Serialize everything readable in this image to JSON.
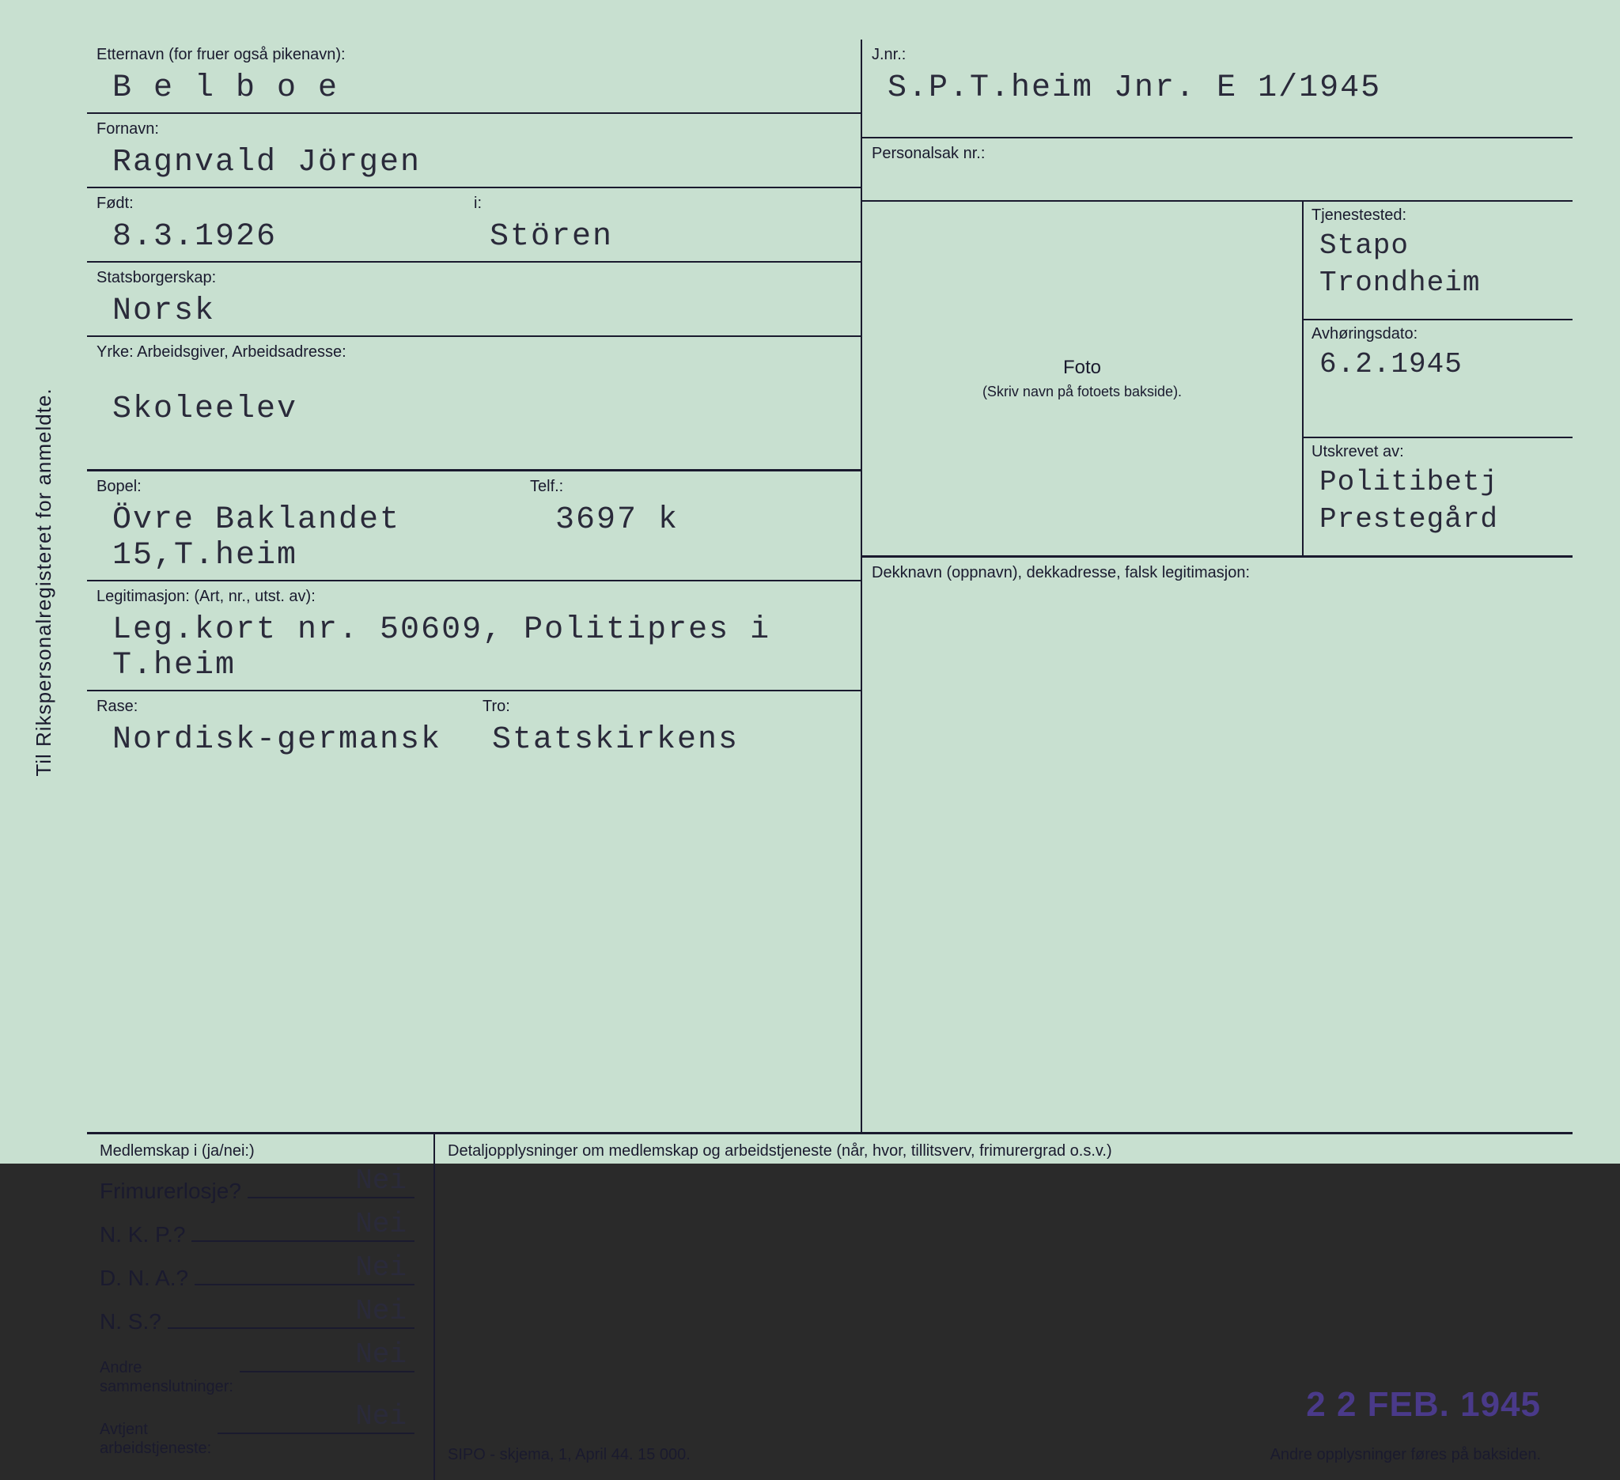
{
  "card": {
    "vertical_title": "Til Rikspersonalregisteret for anmeldte.",
    "background_color": "#c8e0d0",
    "border_color": "#1a1a2e"
  },
  "left": {
    "etternavn_label": "Etternavn (for fruer også pikenavn):",
    "etternavn": "B e l b o e",
    "fornavn_label": "Fornavn:",
    "fornavn": "Ragnvald Jörgen",
    "fodt_label": "Født:",
    "fodt": "8.3.1926",
    "i_label": "i:",
    "sted": "Stören",
    "stats_label": "Statsborgerskap:",
    "stats": "Norsk",
    "yrke_label": "Yrke:    Arbeidsgiver, Arbeidsadresse:",
    "yrke": "Skoleelev",
    "bopel_label": "Bopel:",
    "telf_label": "Telf.:",
    "bopel": "Övre Baklandet 15,T.heim",
    "telf": "3697 k",
    "legit_label": "Legitimasjon: (Art, nr., utst. av):",
    "legit": "Leg.kort nr. 50609, Politipres i T.heim",
    "rase_label": "Rase:",
    "rase": "Nordisk-germansk",
    "tro_label": "Tro:",
    "tro": "Statskirkens"
  },
  "right": {
    "jnr_label": "J.nr.:",
    "jnr": "S.P.T.heim Jnr. E 1/1945",
    "personal_label": "Personalsak nr.:",
    "foto_label": "Foto",
    "foto_sub": "(Skriv navn på fotoets bakside).",
    "tjeneste_label": "Tjenestested:",
    "tjeneste1": "Stapo",
    "tjeneste2": "Trondheim",
    "avhor_label": "Avhøringsdato:",
    "avhor": "6.2.1945",
    "utskrevet_label": "Utskrevet av:",
    "utskrevet1": "Politibetj",
    "utskrevet2": "Prestegård",
    "dekk_label": "Dekknavn (oppnavn), dekkadresse, falsk legitimasjon:"
  },
  "membership": {
    "header": "Medlemskap i (ja/nei:)",
    "rows": [
      {
        "label": "Frimurerlosje?",
        "answer": "Nei"
      },
      {
        "label": "N. K. P.?",
        "answer": "Nei"
      },
      {
        "label": "D. N. A.?",
        "answer": "Nei"
      },
      {
        "label": "N. S.?",
        "answer": "Nei"
      }
    ],
    "andre_label": "Andre\nsammenslutninger:",
    "andre_answer": "Nei",
    "avtjent_label": "Avtjent\narbeidstjeneste:",
    "avtjent_answer": "Nei"
  },
  "detail": {
    "header": "Detaljopplysninger om medlemskap og arbeidstjeneste (når, hvor, tillitsverv, frimurergrad o.s.v.)",
    "stamp": "2 2 FEB. 1945",
    "footer_left": "SIPO - skjema, 1, April 44. 15 000.",
    "footer_right": "Andre opplysninger føres på baksiden."
  }
}
